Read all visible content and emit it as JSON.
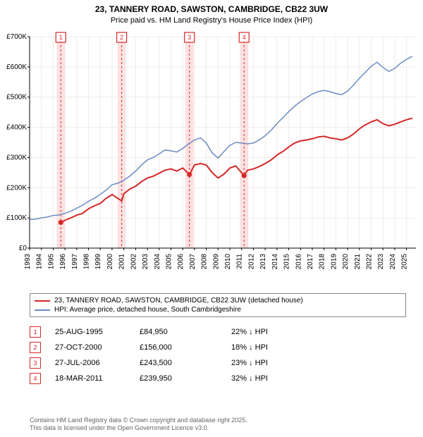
{
  "title_line1": "23, TANNERY ROAD, SAWSTON, CAMBRIDGE, CB22 3UW",
  "title_line2": "Price paid vs. HM Land Registry's House Price Index (HPI)",
  "chart": {
    "type": "line",
    "background_color": "#ffffff",
    "grid_color": "#f0ebe6",
    "axis_color": "#000000",
    "x_years": [
      "1993",
      "1994",
      "1995",
      "1996",
      "1997",
      "1998",
      "1999",
      "2000",
      "2001",
      "2002",
      "2003",
      "2004",
      "2005",
      "2006",
      "2007",
      "2008",
      "2009",
      "2010",
      "2011",
      "2012",
      "2013",
      "2014",
      "2015",
      "2016",
      "2017",
      "2018",
      "2019",
      "2020",
      "2021",
      "2022",
      "2023",
      "2024",
      "2025"
    ],
    "xlim": [
      1993,
      2025.8
    ],
    "ylim": [
      0,
      700000
    ],
    "ytick_step": 100000,
    "ytick_labels": [
      "£0",
      "£100K",
      "£200K",
      "£300K",
      "£400K",
      "£500K",
      "£600K",
      "£700K"
    ],
    "label_fontsize": 10,
    "series_red": {
      "color": "#d62728",
      "width": 2,
      "points": [
        [
          1995.65,
          84950
        ],
        [
          1996,
          92000
        ],
        [
          1996.5,
          100000
        ],
        [
          1997,
          109000
        ],
        [
          1997.5,
          115000
        ],
        [
          1998,
          130000
        ],
        [
          1998.5,
          140000
        ],
        [
          1999,
          148000
        ],
        [
          1999.5,
          165000
        ],
        [
          2000,
          177000
        ],
        [
          2000.82,
          156000
        ],
        [
          2001,
          180000
        ],
        [
          2001.5,
          195000
        ],
        [
          2002,
          205000
        ],
        [
          2002.5,
          220000
        ],
        [
          2003,
          232000
        ],
        [
          2003.5,
          238000
        ],
        [
          2004,
          248000
        ],
        [
          2004.5,
          258000
        ],
        [
          2005,
          262000
        ],
        [
          2005.5,
          255000
        ],
        [
          2006,
          265000
        ],
        [
          2006.57,
          243500
        ],
        [
          2007,
          275000
        ],
        [
          2007.5,
          280000
        ],
        [
          2008,
          275000
        ],
        [
          2008.5,
          250000
        ],
        [
          2009,
          232000
        ],
        [
          2009.5,
          245000
        ],
        [
          2010,
          265000
        ],
        [
          2010.5,
          272000
        ],
        [
          2011.21,
          239950
        ],
        [
          2011.5,
          258000
        ],
        [
          2012,
          262000
        ],
        [
          2012.5,
          270000
        ],
        [
          2013,
          280000
        ],
        [
          2013.5,
          292000
        ],
        [
          2014,
          308000
        ],
        [
          2014.5,
          320000
        ],
        [
          2015,
          335000
        ],
        [
          2015.5,
          348000
        ],
        [
          2016,
          355000
        ],
        [
          2016.5,
          358000
        ],
        [
          2017,
          362000
        ],
        [
          2017.5,
          368000
        ],
        [
          2018,
          370000
        ],
        [
          2018.5,
          365000
        ],
        [
          2019,
          362000
        ],
        [
          2019.5,
          358000
        ],
        [
          2020,
          365000
        ],
        [
          2020.5,
          378000
        ],
        [
          2021,
          395000
        ],
        [
          2021.5,
          408000
        ],
        [
          2022,
          418000
        ],
        [
          2022.5,
          425000
        ],
        [
          2023,
          412000
        ],
        [
          2023.5,
          405000
        ],
        [
          2024,
          410000
        ],
        [
          2024.5,
          418000
        ],
        [
          2025,
          425000
        ],
        [
          2025.5,
          430000
        ]
      ]
    },
    "series_blue": {
      "color": "#6b8cc4",
      "width": 1.5,
      "points": [
        [
          1993,
          95000
        ],
        [
          1993.5,
          96000
        ],
        [
          1994,
          100000
        ],
        [
          1994.5,
          103000
        ],
        [
          1995,
          108000
        ],
        [
          1995.5,
          110000
        ],
        [
          1996,
          115000
        ],
        [
          1996.5,
          122000
        ],
        [
          1997,
          132000
        ],
        [
          1997.5,
          142000
        ],
        [
          1998,
          155000
        ],
        [
          1998.5,
          165000
        ],
        [
          1999,
          178000
        ],
        [
          1999.5,
          192000
        ],
        [
          2000,
          210000
        ],
        [
          2000.5,
          215000
        ],
        [
          2001,
          225000
        ],
        [
          2001.5,
          238000
        ],
        [
          2002,
          255000
        ],
        [
          2002.5,
          275000
        ],
        [
          2003,
          292000
        ],
        [
          2003.5,
          300000
        ],
        [
          2004,
          312000
        ],
        [
          2004.5,
          325000
        ],
        [
          2005,
          322000
        ],
        [
          2005.5,
          318000
        ],
        [
          2006,
          330000
        ],
        [
          2006.5,
          345000
        ],
        [
          2007,
          358000
        ],
        [
          2007.5,
          365000
        ],
        [
          2008,
          348000
        ],
        [
          2008.5,
          315000
        ],
        [
          2009,
          298000
        ],
        [
          2009.5,
          320000
        ],
        [
          2010,
          340000
        ],
        [
          2010.5,
          350000
        ],
        [
          2011,
          348000
        ],
        [
          2011.5,
          345000
        ],
        [
          2012,
          348000
        ],
        [
          2012.5,
          358000
        ],
        [
          2013,
          372000
        ],
        [
          2013.5,
          390000
        ],
        [
          2014,
          412000
        ],
        [
          2014.5,
          432000
        ],
        [
          2015,
          452000
        ],
        [
          2015.5,
          470000
        ],
        [
          2016,
          485000
        ],
        [
          2016.5,
          498000
        ],
        [
          2017,
          510000
        ],
        [
          2017.5,
          518000
        ],
        [
          2018,
          522000
        ],
        [
          2018.5,
          518000
        ],
        [
          2019,
          512000
        ],
        [
          2019.5,
          508000
        ],
        [
          2020,
          520000
        ],
        [
          2020.5,
          540000
        ],
        [
          2021,
          562000
        ],
        [
          2021.5,
          582000
        ],
        [
          2022,
          602000
        ],
        [
          2022.5,
          615000
        ],
        [
          2023,
          598000
        ],
        [
          2023.5,
          585000
        ],
        [
          2024,
          595000
        ],
        [
          2024.5,
          612000
        ],
        [
          2025,
          625000
        ],
        [
          2025.5,
          635000
        ]
      ]
    },
    "markers": [
      {
        "n": "1",
        "year": 1995.65,
        "price": 84950,
        "dot": true
      },
      {
        "n": "2",
        "year": 2000.82,
        "price": 156000,
        "dot": false
      },
      {
        "n": "3",
        "year": 2006.57,
        "price": 243500,
        "dot": true
      },
      {
        "n": "4",
        "year": 2011.21,
        "price": 239950,
        "dot": true
      }
    ],
    "marker_line_color": "#d62728",
    "marker_band_color": "#fde0e0",
    "marker_band_halfwidth_years": 0.35
  },
  "legend": {
    "red_label": "23, TANNERY ROAD, SAWSTON, CAMBRIDGE, CB22 3UW (detached house)",
    "blue_label": "HPI: Average price, detached house, South Cambridgeshire"
  },
  "table": {
    "rows": [
      {
        "n": "1",
        "date": "25-AUG-1995",
        "price": "£84,950",
        "diff": "22% ↓ HPI"
      },
      {
        "n": "2",
        "date": "27-OCT-2000",
        "price": "£156,000",
        "diff": "18% ↓ HPI"
      },
      {
        "n": "3",
        "date": "27-JUL-2006",
        "price": "£243,500",
        "diff": "23% ↓ HPI"
      },
      {
        "n": "4",
        "date": "18-MAR-2011",
        "price": "£239,950",
        "diff": "32% ↓ HPI"
      }
    ]
  },
  "footer_line1": "Contains HM Land Registry data © Crown copyright and database right 2025.",
  "footer_line2": "This data is licensed under the Open Government Licence v3.0."
}
